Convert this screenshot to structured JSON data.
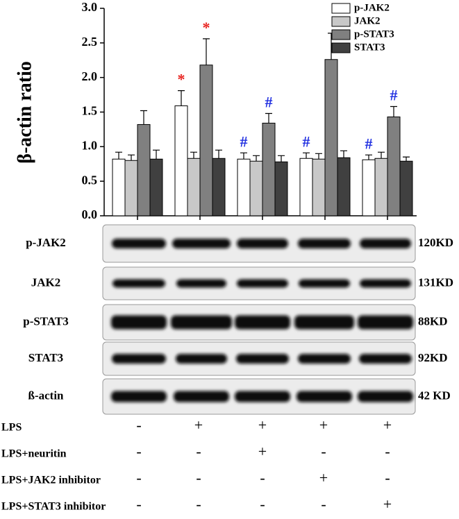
{
  "chart_data": {
    "type": "bar",
    "ylabel": "β-actin ratio",
    "categories": [
      null,
      null,
      null,
      null,
      null
    ],
    "series": [
      {
        "name": "p-JAK2",
        "color": "#ffffff",
        "values": [
          0.82,
          1.59,
          0.82,
          0.83,
          0.81
        ],
        "errors": [
          0.1,
          0.22,
          0.09,
          0.08,
          0.07
        ],
        "markers": [
          null,
          "*",
          "#",
          "#",
          "#"
        ]
      },
      {
        "name": "JAK2",
        "color": "#c8c8c8",
        "values": [
          0.8,
          0.83,
          0.79,
          0.82,
          0.83
        ],
        "errors": [
          0.08,
          0.09,
          0.08,
          0.08,
          0.09
        ],
        "markers": [
          null,
          null,
          null,
          null,
          null
        ]
      },
      {
        "name": "p-STAT3",
        "color": "#808080",
        "values": [
          1.32,
          2.18,
          1.34,
          2.26,
          1.43
        ],
        "errors": [
          0.2,
          0.38,
          0.14,
          0.38,
          0.15
        ],
        "markers": [
          null,
          "*",
          "#",
          null,
          "#"
        ]
      },
      {
        "name": "STAT3",
        "color": "#404040",
        "values": [
          0.82,
          0.83,
          0.78,
          0.84,
          0.79
        ],
        "errors": [
          0.13,
          0.12,
          0.09,
          0.1,
          0.06
        ],
        "markers": [
          null,
          null,
          null,
          null,
          null
        ]
      }
    ],
    "marker_colors": {
      "*": "#e8231f",
      "#": "#1f2ee0"
    },
    "ylim": [
      0,
      3
    ],
    "yticks": [
      {
        "value": 0,
        "label": "0.0"
      },
      {
        "value": 0.5,
        "label": "0.5"
      },
      {
        "value": 1,
        "label": "1.0"
      },
      {
        "value": 1.5,
        "label": "1.5"
      },
      {
        "value": 2,
        "label": "2.0"
      },
      {
        "value": 2.5,
        "label": "2.5"
      },
      {
        "value": 3,
        "label": "3.0"
      }
    ],
    "legend": "upper right"
  },
  "blot": {
    "rows": [
      {
        "label": "p-JAK2",
        "size": "120KD"
      },
      {
        "label": "JAK2",
        "size": "131KD"
      },
      {
        "label": "p-STAT3",
        "size": "88KD"
      },
      {
        "label": "STAT3",
        "size": "92KD"
      },
      {
        "label": "ß-actin",
        "size": "42 KD"
      }
    ]
  },
  "treatments": {
    "rows": [
      {
        "label": "LPS",
        "cells": [
          "-",
          "+",
          "+",
          "+",
          "+"
        ]
      },
      {
        "label": "LPS+neuritin",
        "cells": [
          "-",
          "-",
          "+",
          "-",
          "-"
        ]
      },
      {
        "label": "LPS+JAK2 inhibitor",
        "cells": [
          "-",
          "-",
          "-",
          "+",
          "-"
        ]
      },
      {
        "label": "LPS+STAT3 inhibitor",
        "cells": [
          "-",
          "-",
          "-",
          "-",
          "+"
        ]
      }
    ]
  }
}
